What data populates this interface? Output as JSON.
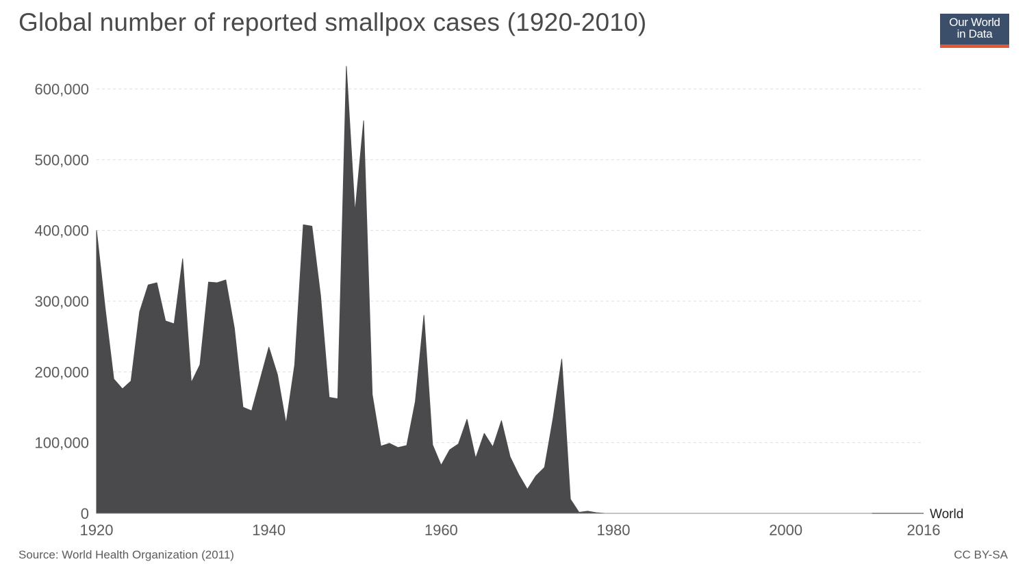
{
  "header": {
    "title": "Global number of reported smallpox cases (1920-2010)",
    "logo_line1": "Our World",
    "logo_line2": "in Data"
  },
  "footer": {
    "source": "Source: World Health Organization (2011)",
    "license": "CC BY-SA"
  },
  "colors": {
    "area": "#4a4a4c",
    "grid": "#dddddd",
    "text": "#5b5b5b",
    "logo_bg": "#3b4f6b",
    "logo_accent": "#e05a3a"
  },
  "chart_data": {
    "type": "area",
    "title": "Global number of reported smallpox cases (1920-2010)",
    "xlabel": "",
    "ylabel": "",
    "xlim": [
      1920,
      2016
    ],
    "ylim": [
      0,
      600000
    ],
    "x_ticks": [
      1920,
      1940,
      1960,
      1980,
      2000,
      2016
    ],
    "y_ticks": [
      0,
      100000,
      200000,
      300000,
      400000,
      500000,
      600000
    ],
    "x_tick_labels": [
      "1920",
      "1940",
      "1960",
      "1980",
      "2000",
      "2016"
    ],
    "y_tick_labels": [
      "0",
      "100,000",
      "200,000",
      "300,000",
      "400,000",
      "500,000",
      "600,000"
    ],
    "grid": true,
    "series": [
      {
        "name": "World",
        "x": [
          1920,
          1921,
          1922,
          1923,
          1924,
          1925,
          1926,
          1927,
          1928,
          1929,
          1930,
          1931,
          1932,
          1933,
          1934,
          1935,
          1936,
          1937,
          1938,
          1939,
          1940,
          1941,
          1942,
          1943,
          1944,
          1945,
          1946,
          1947,
          1948,
          1949,
          1950,
          1951,
          1952,
          1953,
          1954,
          1955,
          1956,
          1957,
          1958,
          1959,
          1960,
          1961,
          1962,
          1963,
          1964,
          1965,
          1966,
          1967,
          1968,
          1969,
          1970,
          1971,
          1972,
          1973,
          1974,
          1975,
          1976,
          1977,
          1978,
          1979,
          1980,
          2010
        ],
        "y": [
          400000,
          290000,
          190000,
          176000,
          187000,
          285000,
          323000,
          326000,
          272000,
          268000,
          360000,
          185000,
          210000,
          327000,
          326000,
          330000,
          262000,
          150000,
          145000,
          190000,
          235000,
          196000,
          127000,
          210000,
          408000,
          406000,
          308000,
          164000,
          162000,
          632000,
          426000,
          555000,
          168000,
          95000,
          99000,
          93000,
          96000,
          158000,
          280000,
          97000,
          68000,
          90000,
          98000,
          133000,
          78000,
          113000,
          94000,
          131000,
          80000,
          55000,
          34000,
          53000,
          65000,
          135000,
          218000,
          20000,
          1500,
          3000,
          1000,
          0,
          0,
          0
        ]
      }
    ]
  }
}
